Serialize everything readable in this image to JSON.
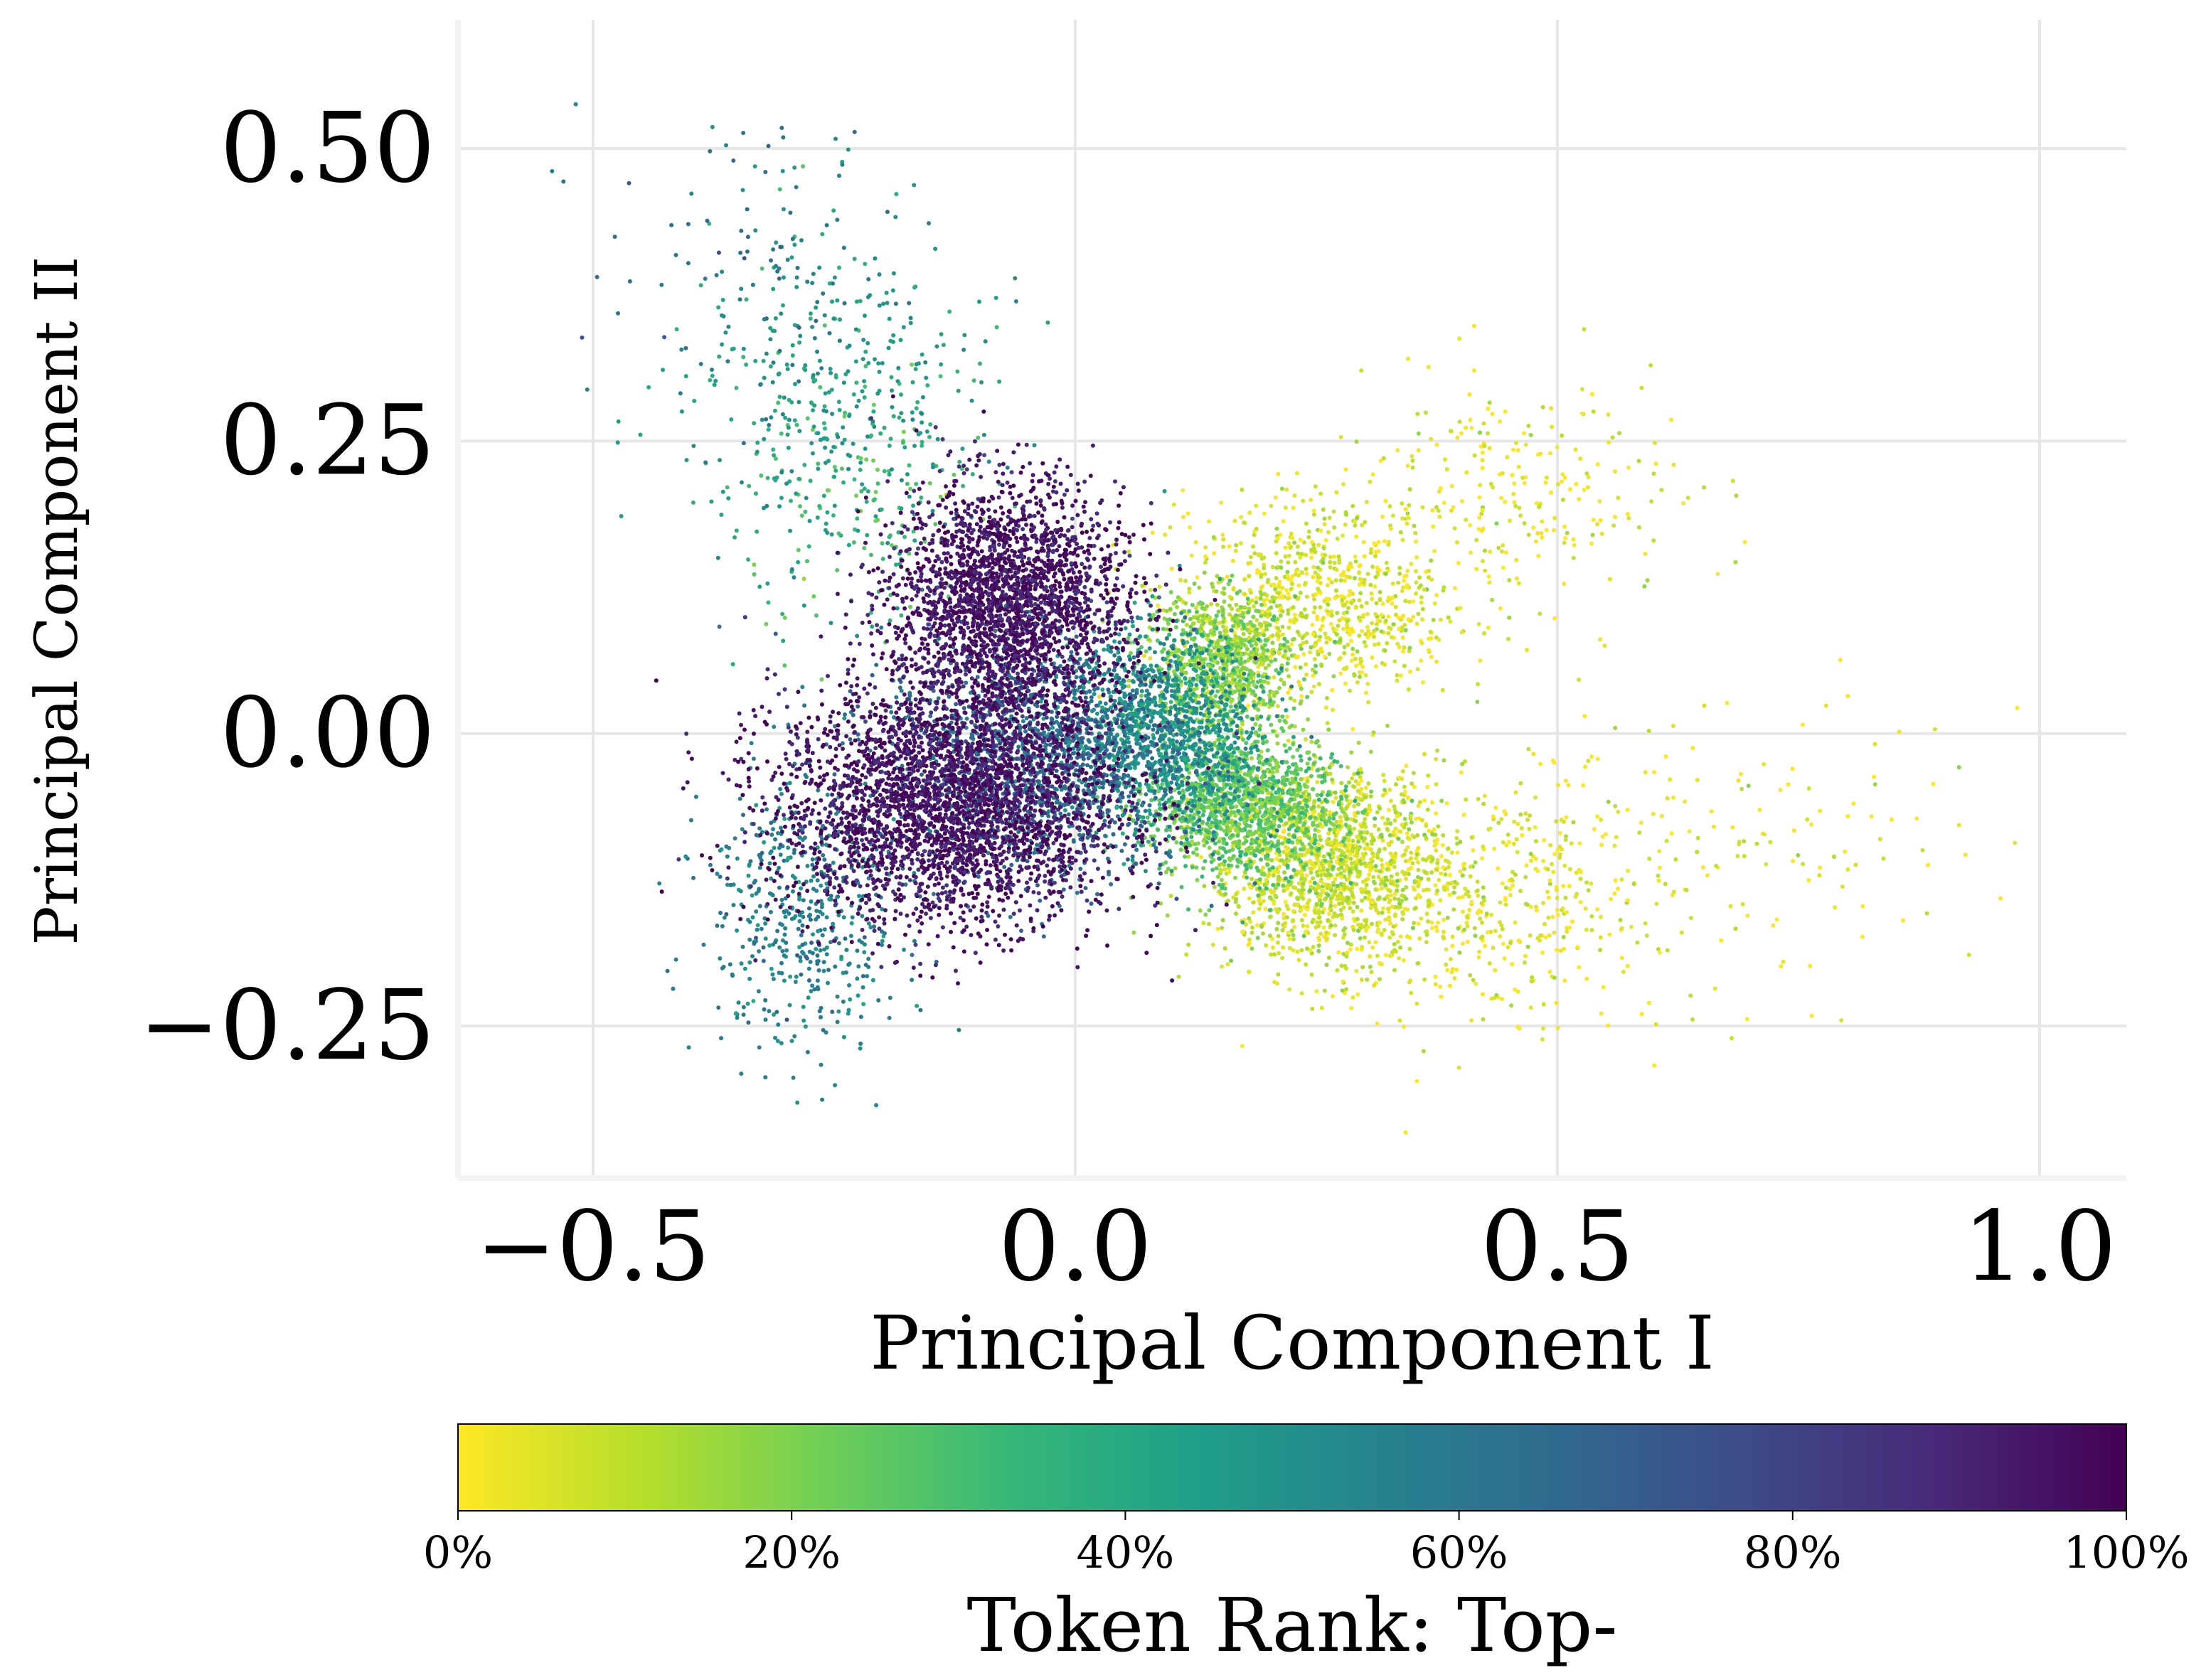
{
  "chart_data": {
    "type": "scatter",
    "title": "",
    "xlabel": "Principal Component I",
    "ylabel": "Principal Component II",
    "xlim": [
      -0.64,
      1.09
    ],
    "ylim": [
      -0.38,
      0.61
    ],
    "xticks": [
      -0.5,
      0.0,
      0.5,
      1.0
    ],
    "xtick_labels": [
      "−0.5",
      "0.0",
      "0.5",
      "1.0"
    ],
    "yticks": [
      0.5,
      0.25,
      0.0,
      -0.25
    ],
    "ytick_labels": [
      "0.50",
      "0.25",
      "0.00",
      "−0.25"
    ],
    "grid": true,
    "colormap": "viridis_r",
    "colorbar": {
      "label": "Token Rank: Top-",
      "ticks": [
        0,
        20,
        40,
        60,
        80,
        100
      ],
      "tick_labels": [
        "0%",
        "20%",
        "40%",
        "60%",
        "80%",
        "100%"
      ],
      "stops": [
        "#fde725",
        "#b5de2b",
        "#6ece58",
        "#35b779",
        "#1f9e89",
        "#26828e",
        "#31688e",
        "#3e4989",
        "#482878",
        "#440154"
      ]
    },
    "clusters": [
      {
        "rank": 95,
        "center": [
          -0.07,
          0.11
        ],
        "spread": [
          0.06,
          0.05
        ],
        "count": 2600
      },
      {
        "rank": 95,
        "center": [
          -0.13,
          -0.06
        ],
        "spread": [
          0.09,
          0.05
        ],
        "count": 3200
      },
      {
        "rank": 65,
        "center": [
          -0.04,
          -0.02
        ],
        "spread": [
          0.08,
          0.05
        ],
        "count": 1400
      },
      {
        "rank": 48,
        "center": [
          0.09,
          0.0
        ],
        "spread": [
          0.05,
          0.04
        ],
        "count": 1200
      },
      {
        "rank": 25,
        "center": [
          0.17,
          -0.06
        ],
        "spread": [
          0.05,
          0.03
        ],
        "count": 1300
      },
      {
        "rank": 18,
        "center": [
          0.15,
          0.06
        ],
        "spread": [
          0.04,
          0.03
        ],
        "count": 900
      },
      {
        "rank": 8,
        "center": [
          0.26,
          -0.11
        ],
        "spread": [
          0.06,
          0.04
        ],
        "count": 1300
      },
      {
        "rank": 5,
        "center": [
          0.25,
          0.11
        ],
        "spread": [
          0.07,
          0.04
        ],
        "count": 800
      },
      {
        "rank": 3,
        "center": [
          0.4,
          -0.14
        ],
        "spread": [
          0.1,
          0.05
        ],
        "count": 500
      },
      {
        "rank": 3,
        "center": [
          0.45,
          0.2
        ],
        "spread": [
          0.09,
          0.05
        ],
        "count": 260
      },
      {
        "rank": 2,
        "center": [
          0.65,
          -0.1
        ],
        "spread": [
          0.16,
          0.07
        ],
        "count": 180
      },
      {
        "rank": 55,
        "center": [
          -0.28,
          -0.15
        ],
        "spread": [
          0.05,
          0.06
        ],
        "count": 500
      },
      {
        "rank": 45,
        "center": [
          -0.25,
          0.28
        ],
        "spread": [
          0.08,
          0.08
        ],
        "count": 380
      },
      {
        "rank": 60,
        "center": [
          -0.35,
          0.4
        ],
        "spread": [
          0.08,
          0.06
        ],
        "count": 90
      },
      {
        "rank": 30,
        "center": [
          -0.22,
          0.2
        ],
        "spread": [
          0.06,
          0.06
        ],
        "count": 160
      }
    ]
  }
}
